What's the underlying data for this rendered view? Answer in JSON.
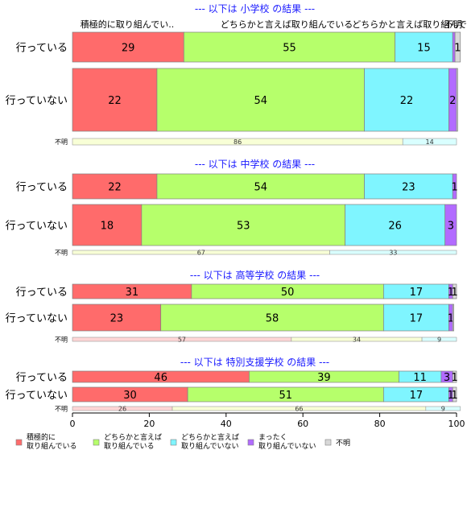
{
  "chart_data": {
    "type": "bar",
    "orientation": "horizontal-stacked-percent",
    "xlim": [
      0,
      100
    ],
    "xticks": [
      "0",
      "20",
      "40",
      "60",
      "80",
      "100"
    ],
    "series_names": [
      "積極的に取り組んでいる",
      "どちらかと言えば取り組んでいる",
      "どちらかと言えば取り組んでいない",
      "まったく取り組んでいない",
      "不明"
    ],
    "colors": [
      "#ff6b6b",
      "#b6ff6b",
      "#7ff5ff",
      "#b26bff",
      "#d8d8d8"
    ],
    "unknown_colors": [
      "#ffd6d6",
      "#f8ffd6",
      "#d9ffff",
      "#e9d6ff",
      "#efefef"
    ],
    "top_headers": [
      "積極的に取り組んでい..",
      "どちらかと言えば取り組んでいる",
      "どちらかと言えば取り組んでいない",
      "不明"
    ],
    "groups": [
      {
        "title": "--- 以下は 小学校 の結果 ---",
        "rows": [
          {
            "label": "行っている",
            "values": [
              29,
              55,
              15,
              0.6,
              1.4
            ],
            "value_labels": [
              "29",
              "55",
              "15",
              "",
              "1"
            ]
          },
          {
            "label": "行っていない",
            "values": [
              22,
              54,
              22,
              2,
              0.3
            ],
            "value_labels": [
              "22",
              "54",
              "22",
              "2",
              ""
            ]
          }
        ],
        "unknown": {
          "label": "不明",
          "values": [
            86,
            14
          ],
          "value_labels": [
            "86",
            "14"
          ],
          "color_index": [
            1,
            2
          ]
        }
      },
      {
        "title": "--- 以下は 中学校 の結果 ---",
        "rows": [
          {
            "label": "行っている",
            "values": [
              22,
              54,
              23,
              1,
              0
            ],
            "value_labels": [
              "22",
              "54",
              "23",
              "1",
              ""
            ]
          },
          {
            "label": "行っていない",
            "values": [
              18,
              53,
              26,
              3,
              0
            ],
            "value_labels": [
              "18",
              "53",
              "26",
              "3",
              ""
            ]
          }
        ],
        "unknown": {
          "label": "不明",
          "values": [
            67,
            33
          ],
          "value_labels": [
            "67",
            "33"
          ],
          "color_index": [
            1,
            2
          ]
        }
      },
      {
        "title": "--- 以下は 高等学校 の結果 ---",
        "rows": [
          {
            "label": "行っている",
            "values": [
              31,
              50,
              17,
              1,
              1
            ],
            "value_labels": [
              "31",
              "50",
              "17",
              "1",
              "1"
            ]
          },
          {
            "label": "行っていない",
            "values": [
              23,
              58,
              17,
              1,
              0.3
            ],
            "value_labels": [
              "23",
              "58",
              "17",
              "1",
              ""
            ]
          }
        ],
        "unknown": {
          "label": "不明",
          "values": [
            57,
            34,
            9
          ],
          "value_labels": [
            "57",
            "34",
            "9"
          ],
          "color_index": [
            0,
            1,
            2
          ]
        }
      },
      {
        "title": "--- 以下は 特別支援学校 の結果 ---",
        "rows": [
          {
            "label": "行っている",
            "values": [
              46,
              39,
              11,
              3,
              1
            ],
            "value_labels": [
              "46",
              "39",
              "11",
              "3",
              "1"
            ]
          },
          {
            "label": "行っていない",
            "values": [
              30,
              51,
              17,
              1,
              1
            ],
            "value_labels": [
              "30",
              "51",
              "17",
              "1",
              "1"
            ]
          }
        ],
        "unknown": {
          "label": "不明",
          "values": [
            26,
            66,
            9
          ],
          "value_labels": [
            "26",
            "66",
            "9"
          ],
          "color_index": [
            0,
            1,
            2
          ]
        }
      }
    ],
    "legend": [
      {
        "lines": [
          "積極的に",
          "取り組んでいる"
        ]
      },
      {
        "lines": [
          "どちらかと言えば",
          "取り組んでいる"
        ]
      },
      {
        "lines": [
          "どちらかと言えば",
          "取り組んでいない"
        ]
      },
      {
        "lines": [
          "まったく",
          "取り組んでいない"
        ]
      },
      {
        "lines": [
          "不明"
        ]
      }
    ]
  }
}
